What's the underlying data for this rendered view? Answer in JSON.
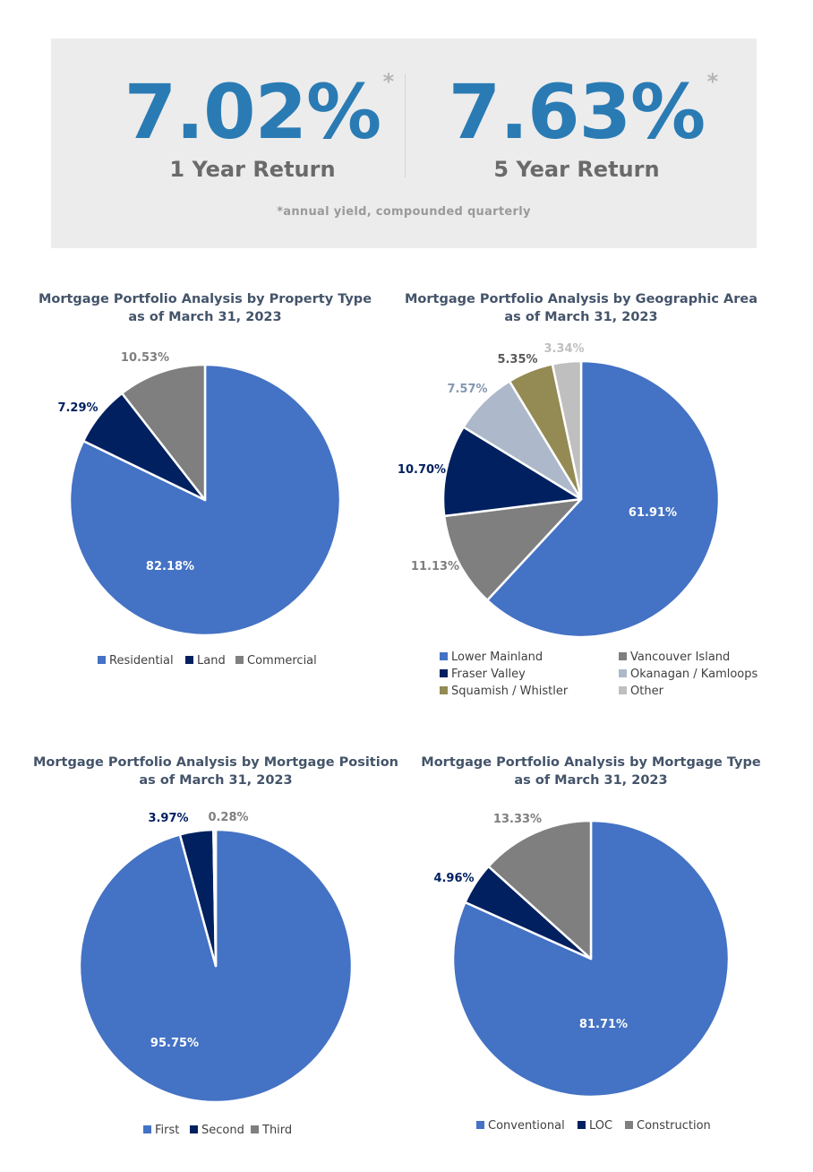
{
  "banner": {
    "stat1": {
      "value": "7.02%",
      "mark": "*",
      "label": "1 Year Return"
    },
    "stat2": {
      "value": "7.63%",
      "mark": "*",
      "label": "5 Year Return"
    },
    "footnote": "*annual yield, compounded quarterly",
    "value_color": "#2a7bb4"
  },
  "chart_data": [
    {
      "type": "pie",
      "title": [
        "Mortgage Portfolio Analysis by Property Type",
        "as of March 31, 2023"
      ],
      "start_angle_deg": 0,
      "legend_columns": 3,
      "slices": [
        {
          "label": "Residential",
          "value": 82.18,
          "display": "82.18%",
          "color": "#4472c4",
          "label_color": "#ffffff",
          "label_inside": true
        },
        {
          "label": "Land",
          "value": 7.29,
          "display": "7.29%",
          "color": "#002060",
          "label_color": "#002060",
          "label_inside": false
        },
        {
          "label": "Commercial",
          "value": 10.53,
          "display": "10.53%",
          "color": "#7f7f7f",
          "label_color": "#7f7f7f",
          "label_inside": false
        }
      ]
    },
    {
      "type": "pie",
      "title": [
        "Mortgage Portfolio Analysis by Geographic Area",
        "as of March 31, 2023"
      ],
      "start_angle_deg": 0,
      "legend_columns": 2,
      "slices": [
        {
          "label": "Lower Mainland",
          "value": 61.91,
          "display": "61.91%",
          "color": "#4472c4",
          "label_color": "#ffffff",
          "label_inside": true
        },
        {
          "label": "Vancouver Island",
          "value": 11.13,
          "display": "11.13%",
          "color": "#7f7f7f",
          "label_color": "#7f7f7f",
          "label_inside": false
        },
        {
          "label": "Fraser Valley",
          "value": 10.7,
          "display": "10.70%",
          "color": "#002060",
          "label_color": "#002060",
          "label_inside": false
        },
        {
          "label": "Okanagan / Kamloops",
          "value": 7.57,
          "display": "7.57%",
          "color": "#adb9ca",
          "label_color": "#8497b0",
          "label_inside": false
        },
        {
          "label": "Squamish / Whistler",
          "value": 5.35,
          "display": "5.35%",
          "color": "#948a54",
          "label_color": "#595959",
          "label_inside": false
        },
        {
          "label": "Other",
          "value": 3.34,
          "display": "3.34%",
          "color": "#bfbfbf",
          "label_color": "#bfbfbf",
          "label_inside": false
        }
      ]
    },
    {
      "type": "pie",
      "title": [
        "Mortgage Portfolio Analysis by Mortgage Position",
        "as of March 31, 2023"
      ],
      "start_angle_deg": 0,
      "legend_columns": 3,
      "slices": [
        {
          "label": "First",
          "value": 95.75,
          "display": "95.75%",
          "color": "#4472c4",
          "label_color": "#ffffff",
          "label_inside": true
        },
        {
          "label": "Second",
          "value": 3.97,
          "display": "3.97%",
          "color": "#002060",
          "label_color": "#002060",
          "label_inside": false
        },
        {
          "label": "Third",
          "value": 0.28,
          "display": "0.28%",
          "color": "#7f7f7f",
          "label_color": "#7f7f7f",
          "label_inside": false
        }
      ]
    },
    {
      "type": "pie",
      "title": [
        "Mortgage Portfolio Analysis by Mortgage Type",
        "as of March 31, 2023"
      ],
      "start_angle_deg": 0,
      "legend_columns": 3,
      "slices": [
        {
          "label": "Conventional",
          "value": 81.71,
          "display": "81.71%",
          "color": "#4472c4",
          "label_color": "#ffffff",
          "label_inside": true
        },
        {
          "label": "LOC",
          "value": 4.96,
          "display": "4.96%",
          "color": "#002060",
          "label_color": "#002060",
          "label_inside": false
        },
        {
          "label": "Construction",
          "value": 13.33,
          "display": "13.33%",
          "color": "#7f7f7f",
          "label_color": "#7f7f7f",
          "label_inside": false
        }
      ]
    }
  ]
}
